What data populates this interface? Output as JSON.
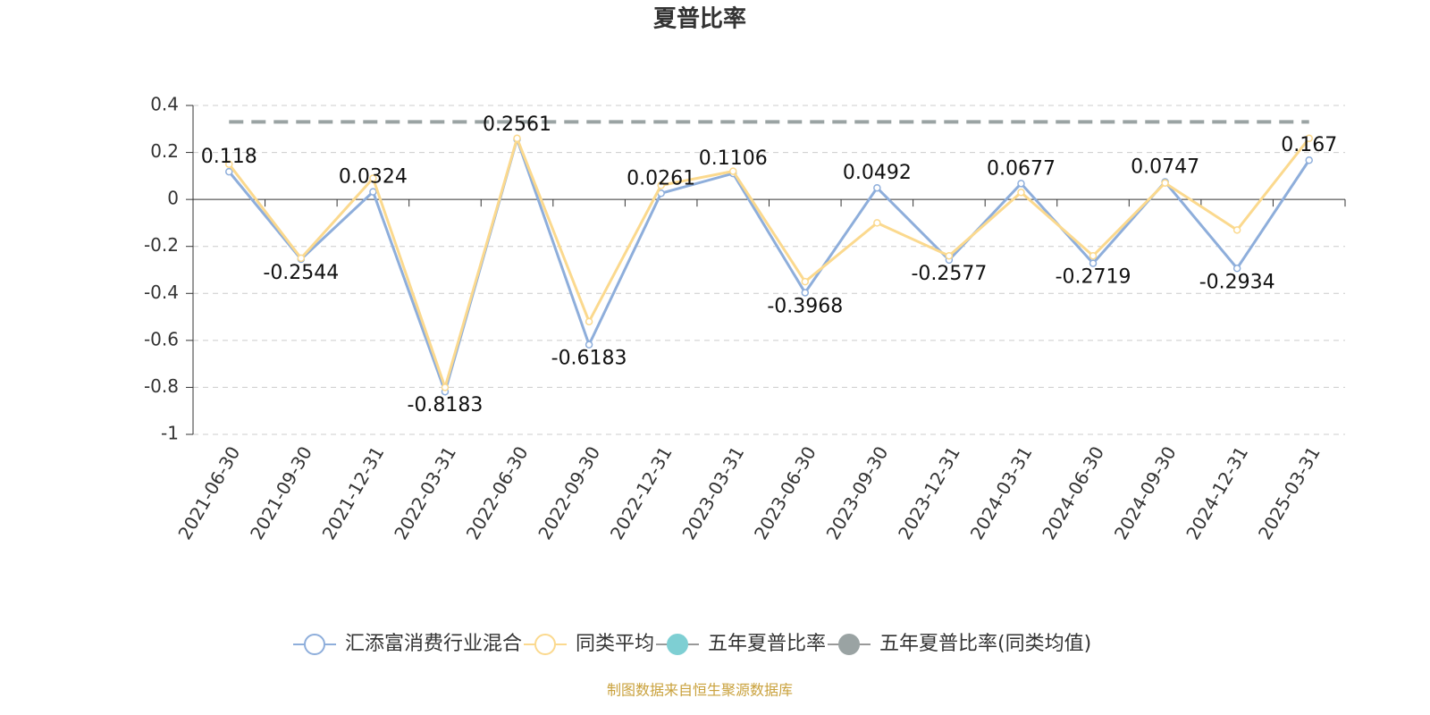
{
  "chart_data": {
    "type": "line",
    "title": "夏普比率",
    "categories": [
      "2021-06-30",
      "2021-09-30",
      "2021-12-31",
      "2022-03-31",
      "2022-06-30",
      "2022-09-30",
      "2022-12-31",
      "2023-03-31",
      "2023-06-30",
      "2023-09-30",
      "2023-12-31",
      "2024-03-31",
      "2024-06-30",
      "2024-09-30",
      "2024-12-31",
      "2025-03-31"
    ],
    "series": [
      {
        "name": "汇添富消费行业混合",
        "color": "#8eaedb",
        "values": [
          0.118,
          -0.2544,
          0.0324,
          -0.8183,
          0.2561,
          -0.6183,
          0.0261,
          0.1106,
          -0.3968,
          0.0492,
          -0.2577,
          0.0677,
          -0.2719,
          0.0747,
          -0.2934,
          0.167
        ],
        "show_labels": true
      },
      {
        "name": "同类平均",
        "color": "#fbd98e",
        "values": [
          0.15,
          -0.25,
          0.09,
          -0.8,
          0.26,
          -0.52,
          0.06,
          0.12,
          -0.35,
          -0.1,
          -0.24,
          0.03,
          -0.24,
          0.07,
          -0.13,
          0.26
        ]
      },
      {
        "name": "五年夏普比率",
        "color": "#7ecfd3",
        "values": [
          null,
          null,
          null,
          null,
          null,
          null,
          null,
          null,
          null,
          null,
          null,
          null,
          null,
          null,
          null,
          null
        ]
      },
      {
        "name": "五年夏普比率(同类均值)",
        "color": "#9aa3a3",
        "dashed": true,
        "values": [
          0.33,
          0.33,
          0.33,
          0.33,
          0.33,
          0.33,
          0.33,
          0.33,
          0.33,
          0.33,
          0.33,
          0.33,
          0.33,
          0.33,
          0.33,
          0.33
        ]
      }
    ],
    "ylim": [
      -1,
      0.4
    ],
    "yticks": [
      -1,
      -0.8,
      -0.6,
      -0.4,
      -0.2,
      0,
      0.2,
      0.4
    ],
    "grid": true,
    "legend": "bottom",
    "source": "制图数据来自恒生聚源数据库"
  }
}
